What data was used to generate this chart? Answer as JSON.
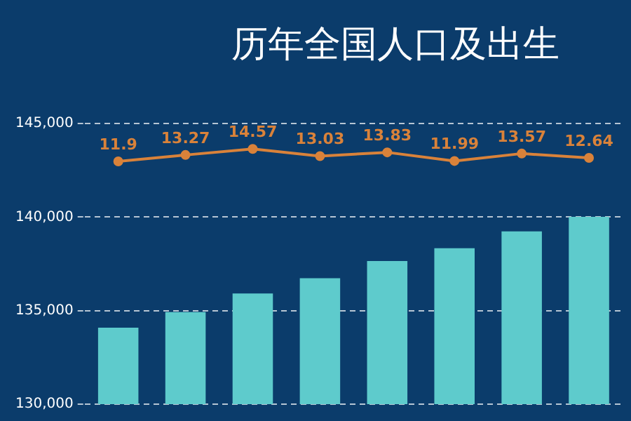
{
  "chart_data": {
    "type": "bar",
    "title": "历年全国人口及出生",
    "categories": [
      null,
      null,
      null,
      null,
      null,
      null,
      null,
      null
    ],
    "series": [
      {
        "color": "#5ecbcc",
        "values": [
          134090,
          134920,
          135920,
          136730,
          137650,
          138330,
          139230,
          140010
        ]
      },
      {
        "type": "line",
        "axis": "y2",
        "color": "#d9823a",
        "values": [
          11.9,
          13.27,
          14.57,
          13.03,
          13.83,
          11.99,
          13.57,
          12.64
        ],
        "data_labels": true
      }
    ],
    "ylim": [
      130000,
      145000
    ],
    "yticks": [
      {
        "value": 130000,
        "label": "130,000"
      },
      {
        "value": 135000,
        "label": "135,000"
      },
      {
        "value": 140000,
        "label": "140,000"
      },
      {
        "value": 145000,
        "label": "145,000"
      }
    ],
    "tick_labels": "y",
    "grid": "y",
    "marker": "circle",
    "legend": false
  }
}
